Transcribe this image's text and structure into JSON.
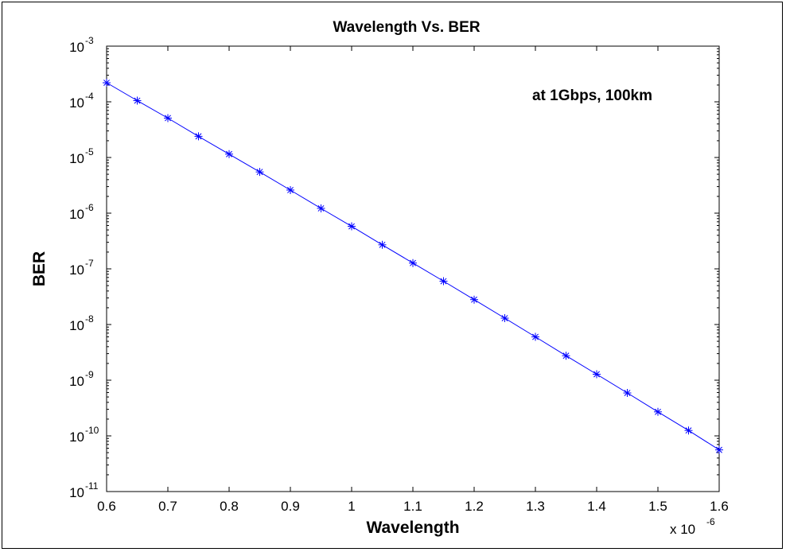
{
  "chart_data": {
    "type": "line",
    "title": "Wavelength Vs. BER",
    "xlabel": "Wavelength",
    "ylabel": "BER",
    "x_multiplier_label": "x 10",
    "x_multiplier_exponent": "-6",
    "annotation": "at 1Gbps, 100km",
    "y_scale": "log",
    "xlim": [
      0.6,
      1.6
    ],
    "ylim": [
      1e-11,
      0.001
    ],
    "grid": false,
    "x_ticks": [
      "0.6",
      "0.7",
      "0.8",
      "0.9",
      "1",
      "1.1",
      "1.2",
      "1.3",
      "1.4",
      "1.5",
      "1.6"
    ],
    "y_ticks": [
      {
        "base": "10",
        "exp": "-3"
      },
      {
        "base": "10",
        "exp": "-4"
      },
      {
        "base": "10",
        "exp": "-5"
      },
      {
        "base": "10",
        "exp": "-6"
      },
      {
        "base": "10",
        "exp": "-7"
      },
      {
        "base": "10",
        "exp": "-8"
      },
      {
        "base": "10",
        "exp": "-9"
      },
      {
        "base": "10",
        "exp": "-10"
      },
      {
        "base": "10",
        "exp": "-11"
      }
    ],
    "series": [
      {
        "color": "#0000ff",
        "marker": "asterisk",
        "x": [
          0.6,
          0.65,
          0.7,
          0.75,
          0.8,
          0.85,
          0.9,
          0.95,
          1.0,
          1.05,
          1.1,
          1.15,
          1.2,
          1.25,
          1.3,
          1.35,
          1.4,
          1.45,
          1.5,
          1.55,
          1.6
        ],
        "y": [
          0.00022,
          0.000105,
          5.1e-05,
          2.4e-05,
          1.15e-05,
          5.5e-06,
          2.6e-06,
          1.22e-06,
          5.8e-07,
          2.7e-07,
          1.27e-07,
          6e-08,
          2.8e-08,
          1.3e-08,
          6e-09,
          2.75e-09,
          1.28e-09,
          5.9e-10,
          2.7e-10,
          1.25e-10,
          5.6e-11
        ]
      }
    ]
  }
}
